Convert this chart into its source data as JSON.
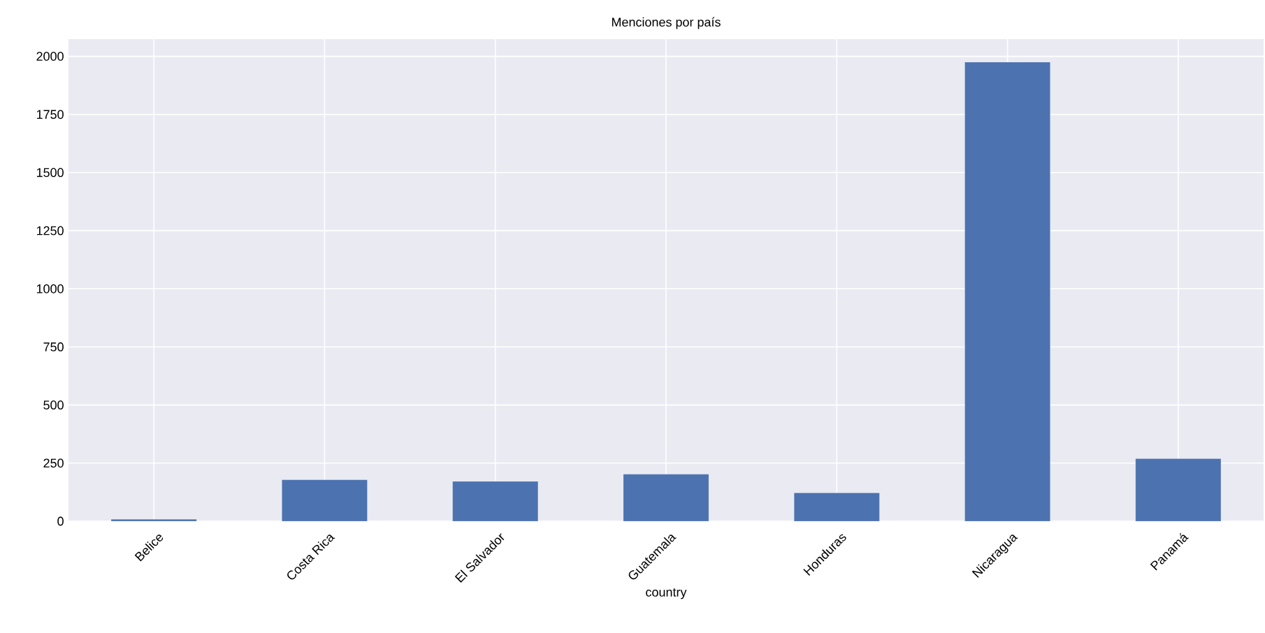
{
  "chart_data": {
    "type": "bar",
    "title": "Menciones por país",
    "xlabel": "country",
    "categories": [
      "Belice",
      "Costa Rica",
      "El Salvador",
      "Guatemala",
      "Honduras",
      "Nicaragua",
      "Panamá"
    ],
    "values": [
      8,
      178,
      171,
      202,
      122,
      1975,
      269
    ],
    "color": "#4c72b0",
    "ylim": [
      0,
      2074
    ],
    "yticks": [
      0,
      250,
      500,
      750,
      1000,
      1250,
      1500,
      1750,
      2000
    ],
    "grid": true
  }
}
